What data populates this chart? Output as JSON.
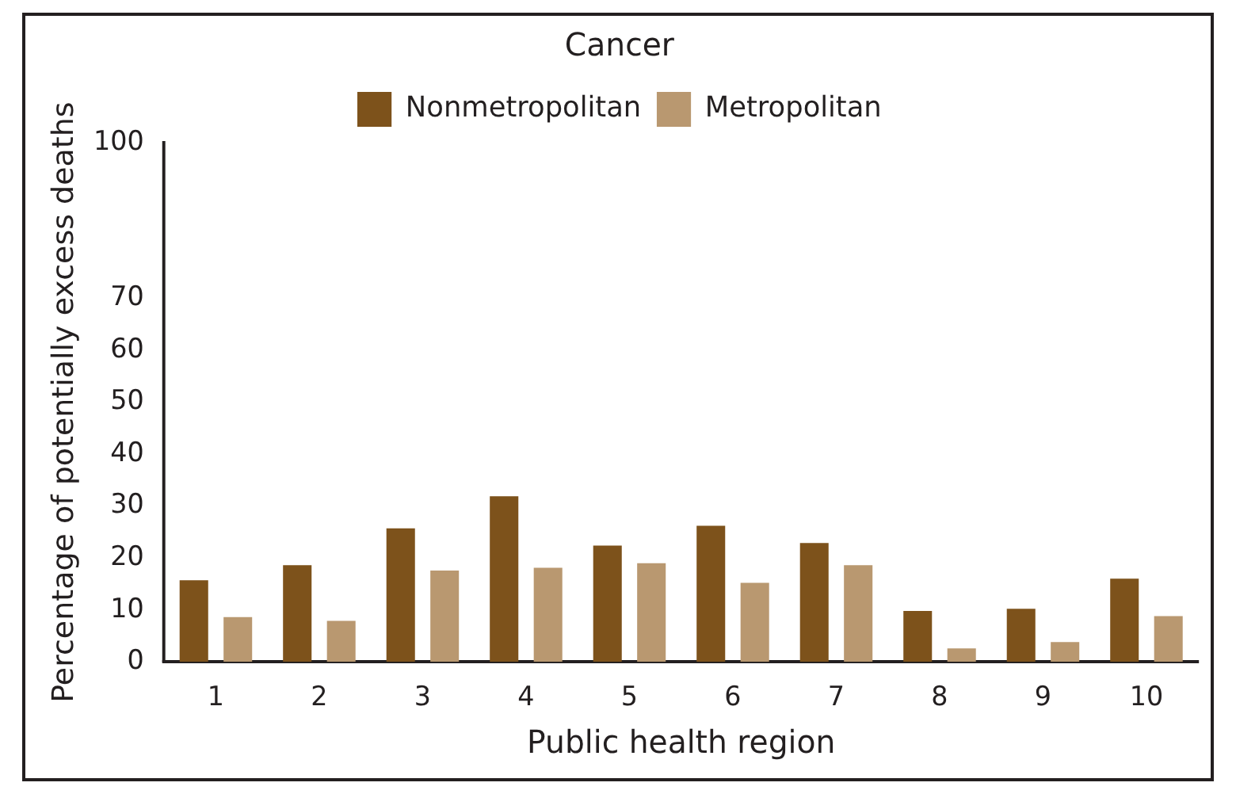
{
  "chart_data": {
    "type": "bar",
    "title": "Cancer",
    "xlabel": "Public health region",
    "ylabel": "Percentage of potentially excess deaths",
    "categories": [
      "1",
      "2",
      "3",
      "4",
      "5",
      "6",
      "7",
      "8",
      "9",
      "10"
    ],
    "series": [
      {
        "name": "Nonmetropolitan",
        "color": "#7d521b",
        "values": [
          15.7,
          18.6,
          25.7,
          31.9,
          22.4,
          26.2,
          22.9,
          9.8,
          10.2,
          16
        ]
      },
      {
        "name": "Metropolitan",
        "color": "#b99870",
        "values": [
          8.6,
          7.9,
          17.6,
          18.1,
          19,
          15.2,
          18.6,
          2.6,
          3.8,
          8.8
        ]
      }
    ],
    "ylim": [
      0,
      100
    ],
    "yticks": [
      0,
      10,
      20,
      30,
      40,
      50,
      60,
      70,
      100
    ],
    "grid": false,
    "legend": "top"
  }
}
